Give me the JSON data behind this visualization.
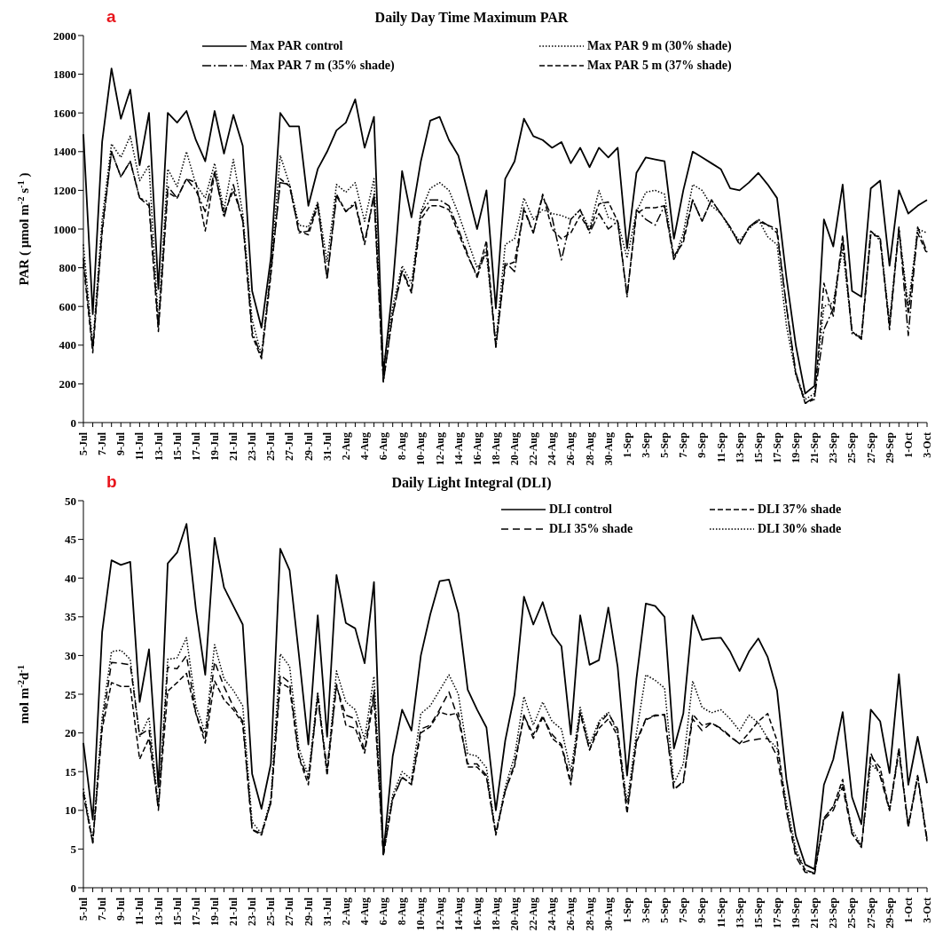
{
  "chart_data": [
    {
      "type": "line",
      "title": "Daily Day Time Maximum PAR",
      "ylabel": "PAR ( µmol m$^{-2}$ s$^{-1}$ )",
      "annotations": [
        "a"
      ],
      "legend": "top",
      "ylim": [
        0,
        2000
      ],
      "yticks": [
        0,
        200,
        400,
        600,
        800,
        1000,
        1200,
        1400,
        1600,
        1800,
        2000
      ],
      "categories": [
        "5-Jul",
        null,
        "7-Jul",
        null,
        "9-Jul",
        null,
        "11-Jul",
        null,
        "13-Jul",
        null,
        "15-Jul",
        null,
        "17-Jul",
        null,
        "19-Jul",
        null,
        "21-Jul",
        null,
        "23-Jul",
        null,
        "25-Jul",
        null,
        "27-Jul",
        null,
        "29-Jul",
        null,
        "31-Jul",
        null,
        "2-Aug",
        null,
        "4-Aug",
        null,
        "6-Aug",
        null,
        "8-Aug",
        null,
        "10-Aug",
        null,
        "12-Aug",
        null,
        "14-Aug",
        null,
        "16-Aug",
        null,
        "18-Aug",
        null,
        "20-Aug",
        null,
        "22-Aug",
        null,
        "24-Aug",
        null,
        "26-Aug",
        null,
        "28-Aug",
        null,
        "30-Aug",
        null,
        "1-Sep",
        null,
        "3-Sep",
        null,
        "5-Sep",
        null,
        "7-Sep",
        null,
        "9-Sep",
        null,
        "11-Sep",
        null,
        "13-Sep",
        null,
        "15-Sep",
        null,
        "17-Sep",
        null,
        "19-Sep",
        null,
        "21-Sep",
        null,
        "23-Sep",
        null,
        "25-Sep",
        null,
        "27-Sep",
        null,
        "29-Sep",
        null,
        "1-Oct",
        null,
        "3-Oct"
      ],
      "series": [
        {
          "name": "Max PAR control",
          "color": "#000000",
          "line_style": "solid",
          "values": [
            1490,
            560,
            1450,
            1830,
            1570,
            1720,
            1330,
            1600,
            690,
            1600,
            1550,
            1610,
            1460,
            1350,
            1610,
            1390,
            1590,
            1430,
            680,
            490,
            850,
            1600,
            1530,
            1530,
            1120,
            1310,
            1400,
            1510,
            1550,
            1670,
            1420,
            1580,
            250,
            700,
            1300,
            1060,
            1350,
            1560,
            1580,
            1460,
            1380,
            1190,
            1000,
            1200,
            590,
            1260,
            1350,
            1570,
            1480,
            1460,
            1420,
            1450,
            1340,
            1420,
            1320,
            1420,
            1370,
            1420,
            900,
            1290,
            1370,
            1360,
            1350,
            950,
            1200,
            1400,
            1370,
            1340,
            1310,
            1210,
            1200,
            1240,
            1290,
            1230,
            1160,
            750,
            400,
            150,
            190,
            1050,
            910,
            1230,
            680,
            650,
            1210,
            1250,
            810,
            1200,
            1080,
            1120,
            1150
          ]
        },
        {
          "name": "Max PAR 9 m (30% shade)",
          "color": "#000000",
          "line_style": "dotted",
          "values": [
            920,
            400,
            1050,
            1440,
            1370,
            1480,
            1250,
            1330,
            520,
            1310,
            1220,
            1400,
            1230,
            1160,
            1340,
            1100,
            1360,
            1080,
            530,
            350,
            800,
            1380,
            1230,
            1020,
            1010,
            1140,
            830,
            1230,
            1190,
            1240,
            1040,
            1260,
            280,
            600,
            810,
            720,
            1090,
            1210,
            1240,
            1200,
            1080,
            940,
            800,
            870,
            410,
            920,
            950,
            1160,
            1050,
            1100,
            1080,
            1070,
            1050,
            1100,
            1000,
            1200,
            1060,
            1040,
            850,
            1090,
            1190,
            1200,
            1180,
            840,
            980,
            1230,
            1200,
            1120,
            1080,
            1000,
            940,
            1000,
            1050,
            960,
            920,
            500,
            250,
            120,
            150,
            600,
            620,
            900,
            470,
            440,
            990,
            950,
            520,
            1000,
            600,
            1000,
            980
          ]
        },
        {
          "name": "Max PAR 7 m  (35% shade)",
          "color": "#000000",
          "line_style": "dashdot",
          "values": [
            850,
            380,
            1000,
            1400,
            1270,
            1350,
            1160,
            1140,
            490,
            1220,
            1160,
            1260,
            1200,
            1090,
            1300,
            1060,
            1230,
            1040,
            470,
            340,
            780,
            1240,
            1230,
            980,
            990,
            1130,
            740,
            1170,
            1090,
            1140,
            930,
            1180,
            210,
            560,
            790,
            680,
            1080,
            1150,
            1150,
            1120,
            1000,
            870,
            750,
            900,
            390,
            830,
            780,
            1110,
            980,
            1170,
            1060,
            840,
            1050,
            1100,
            980,
            1080,
            1000,
            1040,
            650,
            1100,
            1050,
            1020,
            1120,
            840,
            950,
            1150,
            1040,
            1150,
            1080,
            1010,
            920,
            1010,
            1050,
            1020,
            980,
            600,
            260,
            100,
            130,
            480,
            590,
            950,
            460,
            440,
            990,
            940,
            500,
            1010,
            450,
            1010,
            880
          ]
        },
        {
          "name": "Max PAR 5 m (37% shade)",
          "color": "#000000",
          "line_style": "dashed",
          "values": [
            820,
            360,
            980,
            1400,
            1270,
            1350,
            1160,
            1120,
            470,
            1190,
            1160,
            1260,
            1240,
            990,
            1290,
            1080,
            1200,
            1050,
            450,
            330,
            760,
            1260,
            1220,
            990,
            970,
            1120,
            750,
            1180,
            1090,
            1130,
            920,
            1170,
            210,
            560,
            780,
            670,
            1050,
            1120,
            1120,
            1100,
            980,
            860,
            760,
            940,
            390,
            810,
            830,
            1100,
            980,
            1180,
            1000,
            950,
            980,
            1070,
            990,
            1130,
            1140,
            1040,
            660,
            1080,
            1110,
            1110,
            1120,
            860,
            930,
            1150,
            1040,
            1150,
            1080,
            1010,
            920,
            1010,
            1040,
            1020,
            1000,
            600,
            250,
            100,
            120,
            720,
            550,
            970,
            470,
            430,
            970,
            960,
            480,
            1000,
            560,
            980,
            870
          ]
        }
      ]
    },
    {
      "type": "line",
      "title": "Daily Light Integral (DLI)",
      "ylabel": "mol m$^{-2}$d$^{-1}$",
      "annotations": [
        "b"
      ],
      "legend": "top right",
      "ylim": [
        0,
        50
      ],
      "yticks": [
        0,
        5,
        10,
        15,
        20,
        25,
        30,
        35,
        40,
        45,
        50
      ],
      "categories": [
        "5-Jul",
        null,
        "7-Jul",
        null,
        "9-Jul",
        null,
        "11-Jul",
        null,
        "13-Jul",
        null,
        "15-Jul",
        null,
        "17-Jul",
        null,
        "19-Jul",
        null,
        "21-Jul",
        null,
        "23-Jul",
        null,
        "25-Jul",
        null,
        "27-Jul",
        null,
        "29-Jul",
        null,
        "31-Jul",
        null,
        "2-Aug",
        null,
        "4-Aug",
        null,
        "6-Aug",
        null,
        "8-Aug",
        null,
        "10-Aug",
        null,
        "12-Aug",
        null,
        "14-Aug",
        null,
        "16-Aug",
        null,
        "18-Aug",
        null,
        "20-Aug",
        null,
        "22-Aug",
        null,
        "24-Aug",
        null,
        "26-Aug",
        null,
        "28-Aug",
        null,
        "30-Aug",
        null,
        "1-Sep",
        null,
        "3-Sep",
        null,
        "5-Sep",
        null,
        "7-Sep",
        null,
        "9-Sep",
        null,
        "11-Sep",
        null,
        "13-Sep",
        null,
        "15-Sep",
        null,
        "17-Sep",
        null,
        "19-Sep",
        null,
        "21-Sep",
        null,
        "23-Sep",
        null,
        "25-Sep",
        null,
        "27-Sep",
        null,
        "29-Sep",
        null,
        "1-Oct",
        null,
        "3-Oct"
      ],
      "series": [
        {
          "name": "DLI control",
          "color": "#000000",
          "line_style": "solid",
          "values": [
            18.7,
            8.8,
            33,
            42.3,
            41.7,
            42.1,
            24,
            30.8,
            13,
            41.9,
            43.3,
            47,
            36,
            27.5,
            45.2,
            38.8,
            36.4,
            34,
            14.7,
            10.2,
            16,
            43.8,
            41,
            30,
            18.5,
            35.2,
            19.5,
            40.4,
            34.2,
            33.5,
            29,
            39.5,
            4.3,
            17,
            23,
            20.3,
            30,
            35.3,
            39.6,
            39.8,
            35.5,
            25.6,
            23,
            20.7,
            10,
            19,
            25,
            37.6,
            34,
            36.9,
            32.8,
            31.2,
            19.8,
            35.2,
            28.8,
            29.4,
            36.2,
            28.5,
            14.5,
            27,
            36.7,
            36.4,
            35,
            18,
            22.5,
            35.2,
            32,
            32.2,
            32.3,
            30.5,
            28,
            30.5,
            32.2,
            29.8,
            25.5,
            14,
            6.7,
            3,
            2.4,
            13.3,
            16.6,
            22.7,
            11.7,
            8.2,
            23,
            21.5,
            14.8,
            27.6,
            13.3,
            19.5,
            13.5
          ]
        },
        {
          "name": "DLI 37% shade",
          "color": "#000000",
          "line_style": "dashed",
          "values": [
            12,
            5.8,
            20.5,
            26.5,
            26,
            26,
            16.6,
            19.3,
            10.5,
            25.4,
            26.5,
            27.7,
            22.5,
            18.7,
            26.7,
            24.3,
            23,
            21.2,
            7.5,
            6.8,
            11,
            26.5,
            25.8,
            16.8,
            13.3,
            25,
            14.5,
            26.3,
            21,
            20.6,
            17.4,
            24.5,
            4.2,
            11.5,
            14.3,
            13.3,
            20,
            20.8,
            22.7,
            22.3,
            22.6,
            15.6,
            15.6,
            14.3,
            6.8,
            12.5,
            15.7,
            22.2,
            19.8,
            22.2,
            19.3,
            18.3,
            13.3,
            22.5,
            17.8,
            20.6,
            21.8,
            19.6,
            9.6,
            18.8,
            21.7,
            22.2,
            22.4,
            12.8,
            13.6,
            22.4,
            21,
            21.3,
            20.5,
            19.5,
            18.6,
            20,
            21.5,
            22.5,
            19,
            10,
            4.5,
            2.3,
            1.9,
            9,
            10.5,
            14,
            7,
            5.2,
            17,
            15.5,
            10,
            18,
            7.8,
            14.3,
            6
          ]
        },
        {
          "name": "DLI 35% shade",
          "color": "#000000",
          "line_style": "longdash",
          "values": [
            12.3,
            5.8,
            21,
            29.1,
            29,
            28.8,
            19.7,
            20.5,
            10,
            28.5,
            28.3,
            30,
            22.5,
            19.3,
            29.2,
            26,
            23.4,
            21.5,
            7.5,
            7,
            11,
            27.5,
            26.5,
            17,
            14,
            24.3,
            15.5,
            26,
            22.3,
            21.8,
            17.7,
            25.5,
            4.3,
            11.5,
            14.2,
            13.5,
            20.5,
            21,
            23,
            25.3,
            21.8,
            16,
            16,
            14.5,
            7,
            12.5,
            16,
            22.3,
            19.3,
            22,
            19.8,
            18.5,
            13.8,
            22.8,
            17.8,
            21.2,
            22.5,
            20.5,
            10,
            19,
            21.8,
            22.3,
            22.3,
            12.6,
            13.8,
            21.8,
            20.3,
            21.3,
            20.6,
            19.6,
            18.6,
            19,
            19.2,
            19.3,
            17,
            10,
            4,
            2,
            1.8,
            8.8,
            10,
            13,
            7,
            5.3,
            17.4,
            14.4,
            10,
            17.5,
            8,
            14.5,
            6.3
          ]
        },
        {
          "name": "DLI 30% shade",
          "color": "#000000",
          "line_style": "dotted",
          "values": [
            12.8,
            6,
            22,
            30.5,
            30.7,
            29.5,
            19.5,
            22,
            10.5,
            29.5,
            29.7,
            32.3,
            23.5,
            20,
            31.4,
            27,
            25.5,
            23.5,
            8.5,
            7,
            11.5,
            30.2,
            28.6,
            18,
            14.5,
            25.3,
            15,
            28,
            24,
            23,
            19.2,
            27.3,
            5.2,
            12,
            15,
            14,
            22.5,
            23.5,
            25.5,
            27.5,
            25,
            17.3,
            17,
            15.5,
            7,
            13,
            17,
            24.7,
            21,
            24,
            21.5,
            20.5,
            15,
            23.3,
            18.5,
            21.5,
            22.7,
            20,
            11,
            20,
            27.5,
            26.8,
            25.8,
            13.5,
            16,
            26.7,
            23.3,
            22.6,
            23,
            21.8,
            20.3,
            22.3,
            21.3,
            19.3,
            18,
            11,
            5,
            2.3,
            1.8,
            9,
            10.5,
            13.5,
            7.5,
            5.5,
            16,
            14.8,
            10,
            18,
            8,
            14.5,
            6
          ]
        }
      ]
    }
  ]
}
